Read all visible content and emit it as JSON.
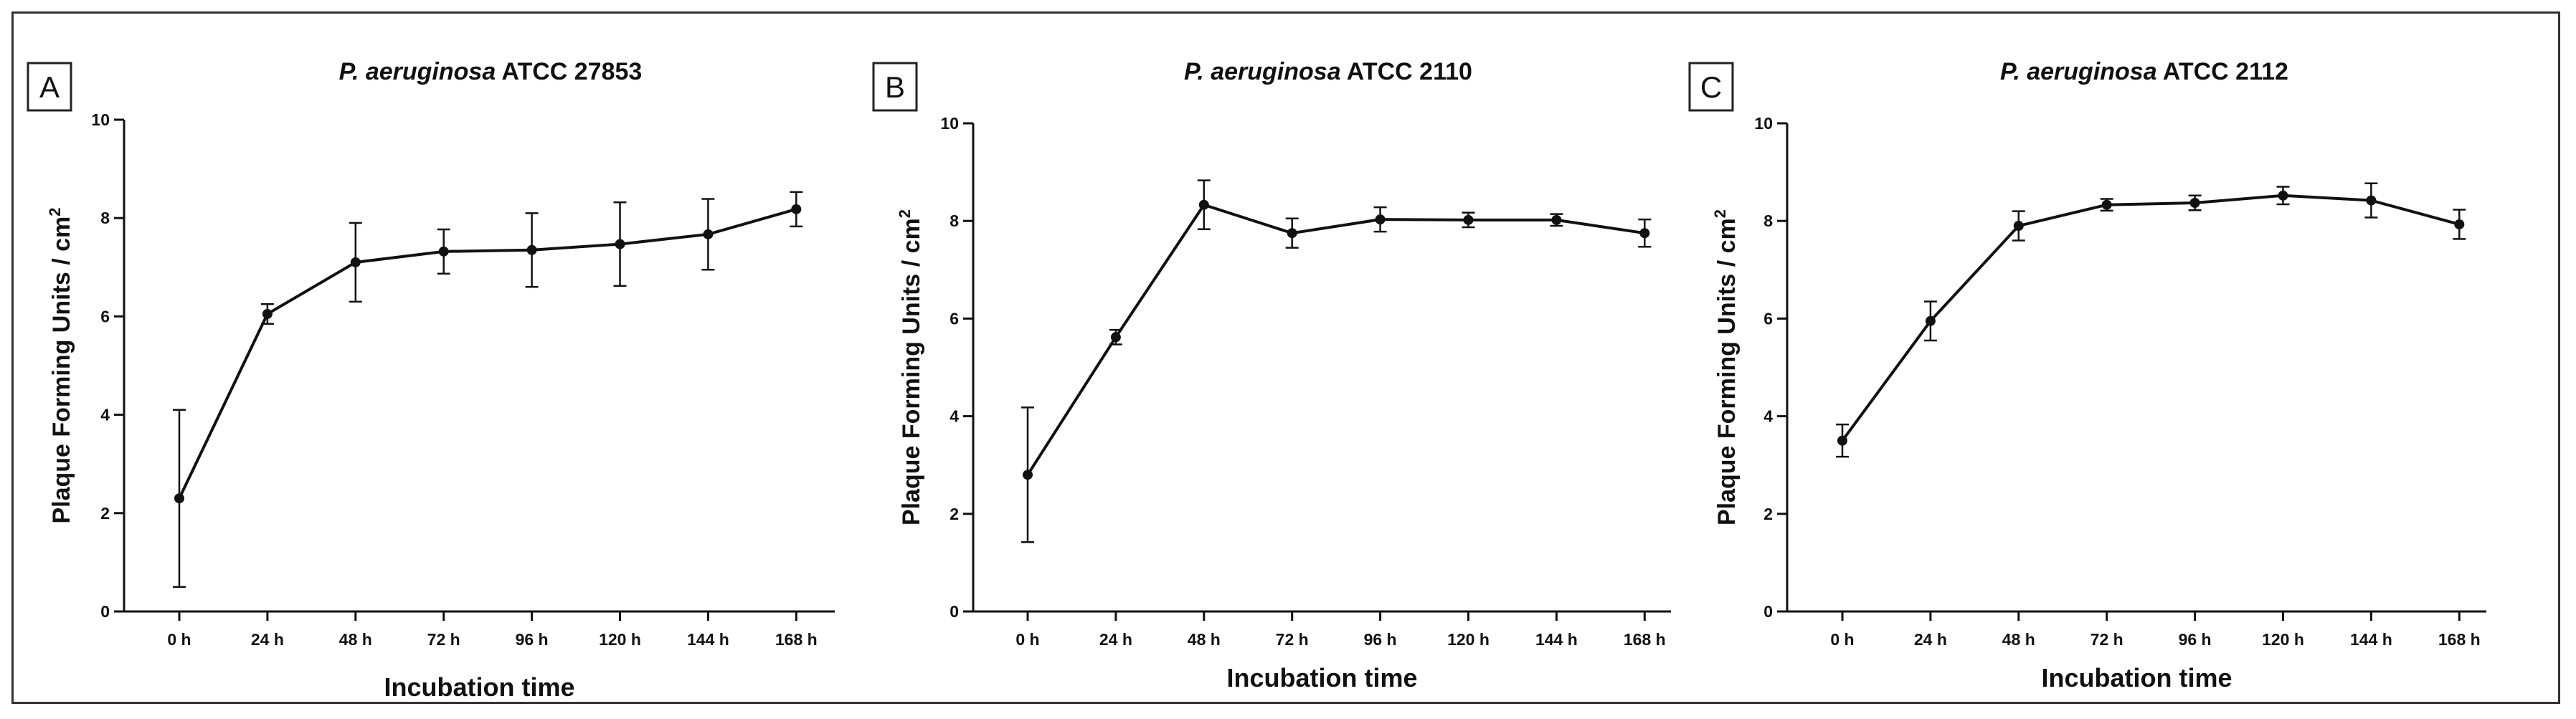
{
  "figure": {
    "panels": [
      {
        "letter": "A",
        "title_species": "P. aeruginosa",
        "title_strain": " ATCC 27853",
        "ylabel": "Plaque Forming Units / cm",
        "ylabel_sup": "2",
        "xlabel": "Incubation time"
      },
      {
        "letter": "B",
        "title_species": "P. aeruginosa",
        "title_strain": " ATCC 2110",
        "ylabel": "Plaque Forming Units / cm",
        "ylabel_sup": "2",
        "xlabel": "Incubation time"
      },
      {
        "letter": "C",
        "title_species": "P. aeruginosa",
        "title_strain": " ATCC 2112",
        "ylabel": "Plaque Forming Units / cm",
        "ylabel_sup": "2",
        "xlabel": "Incubation time"
      }
    ]
  },
  "chart_data": [
    {
      "type": "line",
      "title": "P. aeruginosa ATCC 27853",
      "xlabel": "Incubation time",
      "ylabel": "Plaque Forming Units / cm2",
      "categories": [
        "0 h",
        "24 h",
        "48 h",
        "72 h",
        "96 h",
        "120 h",
        "144 h",
        "168 h"
      ],
      "values": [
        2.3,
        6.05,
        7.1,
        7.32,
        7.35,
        7.47,
        7.67,
        8.18
      ],
      "errors": [
        1.8,
        0.2,
        0.8,
        0.45,
        0.75,
        0.85,
        0.72,
        0.35
      ],
      "ylim": [
        0,
        10
      ],
      "yticks": [
        0,
        2,
        4,
        6,
        8,
        10
      ],
      "ytick_labels": [
        "0",
        "2",
        "4",
        "6",
        "8",
        "10"
      ]
    },
    {
      "type": "line",
      "title": "P. aeruginosa ATCC 2110",
      "xlabel": "Incubation time",
      "ylabel": "Plaque Forming Units / cm2",
      "categories": [
        "0 h",
        "24 h",
        "48 h",
        "72 h",
        "96 h",
        "120 h",
        "144 h",
        "168 h"
      ],
      "values": [
        2.8,
        5.62,
        8.33,
        7.75,
        8.03,
        8.02,
        8.02,
        7.75
      ],
      "errors": [
        1.38,
        0.15,
        0.5,
        0.3,
        0.25,
        0.15,
        0.12,
        0.28
      ],
      "ylim": [
        0,
        10
      ],
      "yticks": [
        0,
        2,
        4,
        6,
        8,
        10
      ],
      "ytick_labels": [
        "0",
        "2",
        "4",
        "6",
        "8",
        "10"
      ]
    },
    {
      "type": "line",
      "title": "P. aeruginosa ATCC 2112",
      "xlabel": "Incubation time",
      "ylabel": "Plaque Forming Units / cm2",
      "categories": [
        "0 h",
        "24 h",
        "48 h",
        "72 h",
        "96 h",
        "120 h",
        "144 h",
        "168 h"
      ],
      "values": [
        3.5,
        5.95,
        7.9,
        8.33,
        8.37,
        8.52,
        8.42,
        7.93
      ],
      "errors": [
        0.33,
        0.4,
        0.3,
        0.12,
        0.15,
        0.18,
        0.35,
        0.3
      ],
      "ylim": [
        0,
        10
      ],
      "yticks": [
        0,
        2,
        4,
        6,
        8,
        10
      ],
      "ytick_labels": [
        "0",
        "2",
        "4",
        "6",
        "8",
        "10"
      ]
    }
  ]
}
